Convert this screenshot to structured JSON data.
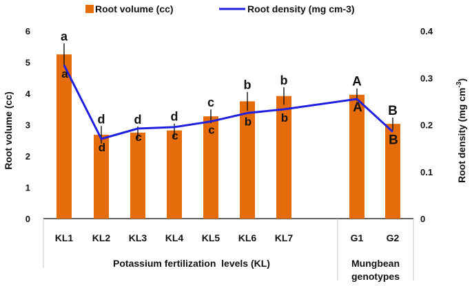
{
  "chart_data": {
    "type": "bar+line",
    "categories": [
      "KL1",
      "KL2",
      "KL3",
      "KL4",
      "KL5",
      "KL6",
      "KL7",
      "G1",
      "G2"
    ],
    "group_labels": [
      "Potassium fertilization  levels (KL)",
      "Mungbean genotypes"
    ],
    "group_label_lines": [
      [
        "Potassium fertilization  levels (KL)"
      ],
      [
        "Mungbean",
        "genotypes"
      ]
    ],
    "series": [
      {
        "name": "Root volume (cc)",
        "type": "bar",
        "axis": "left",
        "color": "#E46C0A",
        "values": [
          5.25,
          2.68,
          2.75,
          2.82,
          3.27,
          3.75,
          3.92,
          3.96,
          3.03
        ],
        "errors": [
          0.35,
          0.28,
          0.2,
          0.22,
          0.22,
          0.3,
          0.28,
          0.2,
          0.2
        ],
        "labels": [
          "a",
          "d",
          "d",
          "d",
          "c",
          "b",
          "b",
          "A",
          "B"
        ]
      },
      {
        "name": "Root density (mg cm-3)",
        "type": "line",
        "axis": "right",
        "color": "#1F1FE0",
        "values": [
          0.327,
          0.17,
          0.192,
          0.195,
          0.207,
          0.225,
          0.233,
          0.255,
          0.185
        ],
        "labels": [
          "a",
          "d",
          "c",
          "c",
          "c",
          "b",
          "b",
          "A",
          "B"
        ]
      }
    ],
    "left_axis": {
      "label": "Root volume (cc)",
      "ylim": [
        0,
        6
      ],
      "ticks": [
        "0",
        "1",
        "2",
        "3",
        "4",
        "5",
        "6"
      ]
    },
    "right_axis": {
      "label": "Root density (mg cm",
      "label_sup": "-3",
      "label_end": ")",
      "ylim": [
        0,
        0.4
      ],
      "ticks": [
        "0",
        "0.1",
        "0.2",
        "0.3",
        "0.4"
      ]
    },
    "legend": {
      "position": "top"
    }
  }
}
